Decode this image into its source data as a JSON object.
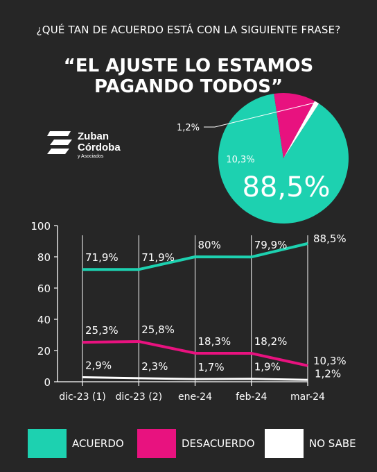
{
  "question": "¿QUÉ TAN DE ACUERDO ESTÁ CON LA SIGUIENTE FRASE?",
  "headline": "“EL AJUSTE LO ESTAMOS PAGANDO TODOS”",
  "brand": {
    "line1": "Zuban",
    "line2": "Córdoba",
    "line3": "y Asociados"
  },
  "colors": {
    "acuerdo": "#1dd1b0",
    "desacuerdo": "#e8127f",
    "no_sabe": "#ffffff",
    "background": "#262626"
  },
  "chart_data": [
    {
      "type": "pie",
      "labels": [
        "ACUERDO",
        "DESACUERDO",
        "NO SABE"
      ],
      "values": [
        88.5,
        10.3,
        1.2
      ],
      "value_labels": [
        "88,5%",
        "10,3%",
        "1,2%"
      ]
    },
    {
      "type": "line",
      "categories": [
        "dic-23 (1)",
        "dic-23 (2)",
        "ene-24",
        "feb-24",
        "mar-24"
      ],
      "ylim": [
        0,
        100
      ],
      "yticks": [
        "0",
        "20",
        "40",
        "60",
        "80",
        "100"
      ],
      "grid": "vertical lines at each category",
      "legend": "bottom",
      "series": [
        {
          "name": "ACUERDO",
          "values": [
            71.9,
            71.9,
            80,
            79.9,
            88.5
          ],
          "labels": [
            "71,9%",
            "71,9%",
            "80%",
            "79,9%",
            "88,5%"
          ]
        },
        {
          "name": "DESACUERDO",
          "values": [
            25.3,
            25.8,
            18.3,
            18.2,
            10.3
          ],
          "labels": [
            "25,3%",
            "25,8%",
            "18,3%",
            "18,2%",
            "10,3%"
          ]
        },
        {
          "name": "NO SABE",
          "values": [
            2.9,
            2.3,
            1.7,
            1.9,
            1.2
          ],
          "labels": [
            "2,9%",
            "2,3%",
            "1,7%",
            "1,9%",
            "1,2%"
          ]
        }
      ]
    }
  ]
}
